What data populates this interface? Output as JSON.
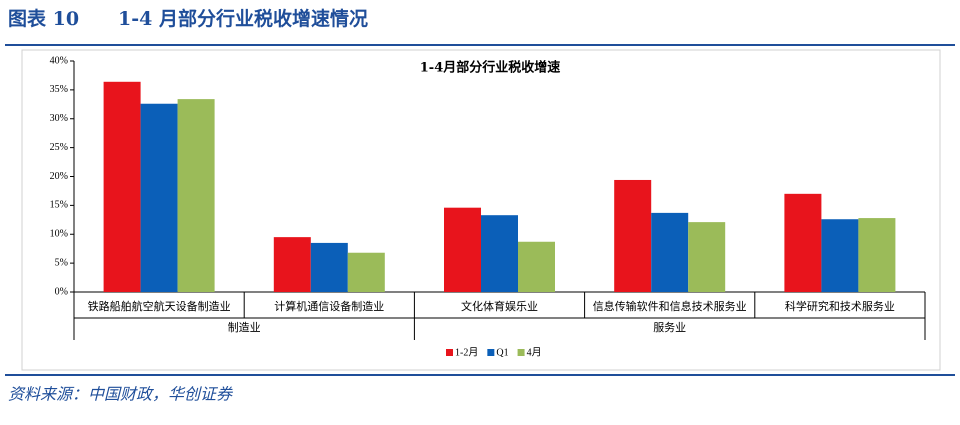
{
  "header": {
    "label": "图表 10",
    "title": "1-4 月部分行业税收增速情况"
  },
  "chart_data": {
    "type": "bar",
    "title": "1-4月部分行业税收增速",
    "groups": [
      {
        "name": "制造业",
        "categories": [
          "铁路船舶航空航天设备制造业",
          "计算机通信设备制造业"
        ]
      },
      {
        "name": "服务业",
        "categories": [
          "文化体育娱乐业",
          "信息传输软件和信息技术服务业",
          "科学研究和技术服务业"
        ]
      }
    ],
    "series": [
      {
        "name": "1-2月",
        "color": "#e8141c",
        "values": [
          36.4,
          9.5,
          14.6,
          19.4,
          17.0
        ]
      },
      {
        "name": "Q1",
        "color": "#0b5fb8",
        "values": [
          32.6,
          8.5,
          13.3,
          13.7,
          12.6
        ]
      },
      {
        "name": "4月",
        "color": "#9bbb59",
        "values": [
          33.4,
          6.8,
          8.7,
          12.1,
          12.8
        ]
      }
    ],
    "ylim": [
      0,
      40
    ],
    "yticks": [
      {
        "value": 0,
        "label": "0%"
      },
      {
        "value": 5,
        "label": "5%"
      },
      {
        "value": 10,
        "label": "10%"
      },
      {
        "value": 15,
        "label": "15%"
      },
      {
        "value": 20,
        "label": "20%"
      },
      {
        "value": 25,
        "label": "25%"
      },
      {
        "value": 30,
        "label": "30%"
      },
      {
        "value": 35,
        "label": "35%"
      },
      {
        "value": 40,
        "label": "40%"
      }
    ],
    "grid": false,
    "legend": "bottom"
  },
  "source": "资料来源：中国财政，华创证券"
}
